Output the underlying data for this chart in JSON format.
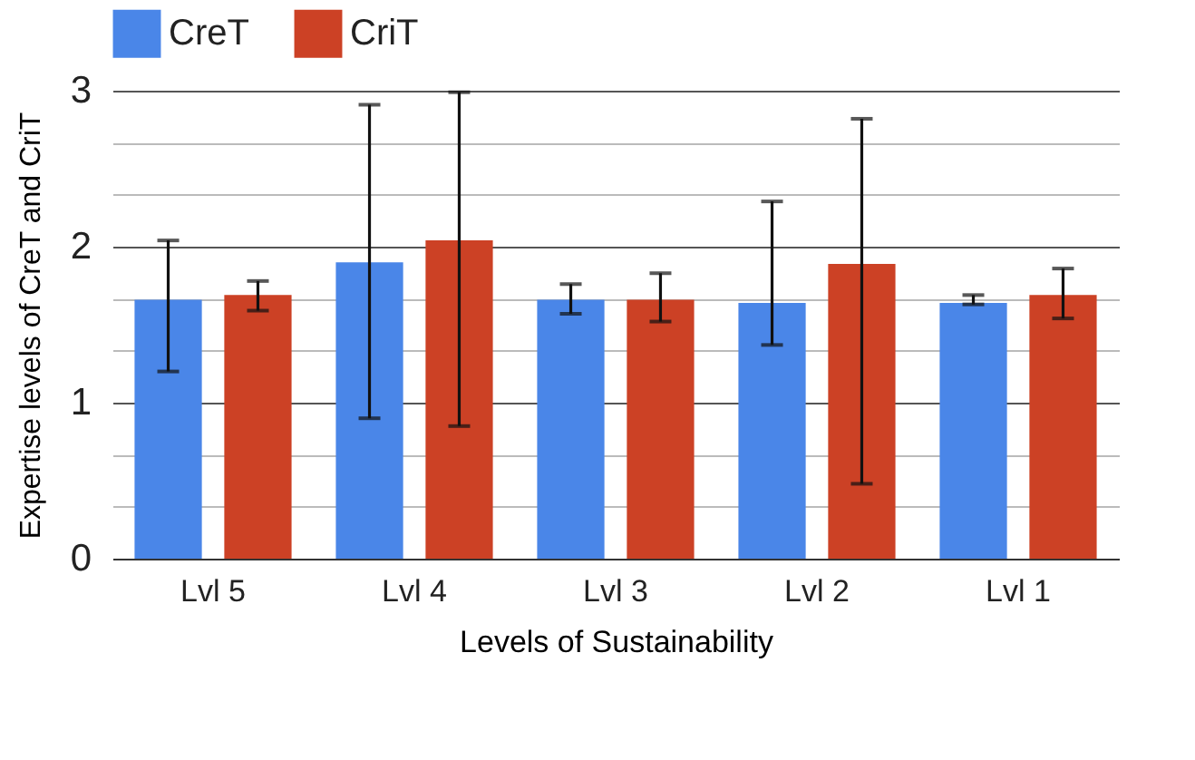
{
  "chart_data": {
    "type": "bar",
    "xlabel": "Levels of Sustainability",
    "ylabel": "Expertise levels of CreT and CriT",
    "categories": [
      "Lvl 5",
      "Lvl 4",
      "Lvl 3",
      "Lvl 2",
      "Lvl 1"
    ],
    "series": [
      {
        "name": "CreT",
        "color": "#4a86e8",
        "values": [
          1.66,
          1.9,
          1.66,
          1.64,
          1.64
        ],
        "errors": [
          [
            1.2,
            2.04
          ],
          [
            0.9,
            2.91
          ],
          [
            1.57,
            1.76
          ],
          [
            1.37,
            2.29
          ],
          [
            1.63,
            1.69
          ]
        ]
      },
      {
        "name": "CriT",
        "color": "#cc4125",
        "values": [
          1.69,
          2.04,
          1.66,
          1.89,
          1.69
        ],
        "errors": [
          [
            1.59,
            1.78
          ],
          [
            0.85,
            2.99
          ],
          [
            1.52,
            1.83
          ],
          [
            0.48,
            2.82
          ],
          [
            1.54,
            1.86
          ]
        ]
      }
    ],
    "ylim": [
      0,
      3
    ],
    "yticks": [
      0,
      {
        "value": 0.333,
        "label": null
      },
      {
        "value": 0.667,
        "label": null
      },
      1,
      {
        "value": 1.333,
        "label": null
      },
      {
        "value": 1.667,
        "label": null
      },
      2,
      {
        "value": 2.333,
        "label": null
      },
      {
        "value": 2.667,
        "label": null
      },
      3
    ],
    "grid": true,
    "legend": "top"
  }
}
